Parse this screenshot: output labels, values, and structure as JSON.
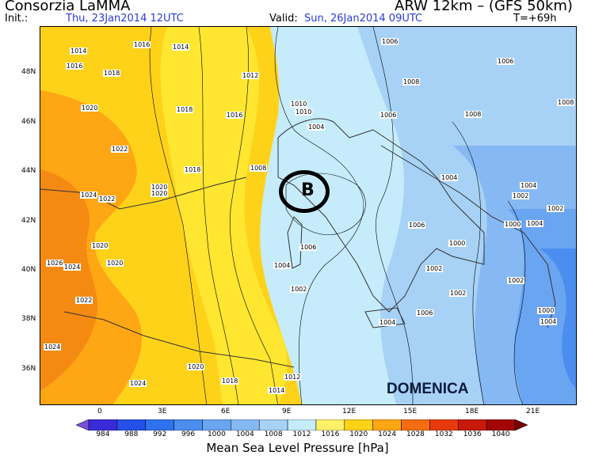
{
  "header": {
    "title": "Consorzia LaMMA",
    "model": "ARW 12km  –  (GFS 50km)",
    "init_label": "Init.:",
    "init_value": "Thu, 23Jan2014  12UTC",
    "valid_label": "Valid:",
    "valid_value": "Sun, 26Jan2014  09UTC",
    "lead": "T=+69h"
  },
  "map": {
    "lat_labels": [
      "48N",
      "46N",
      "44N",
      "42N",
      "40N",
      "38N",
      "36N"
    ],
    "lon_labels": [
      "0",
      "3E",
      "6E",
      "9E",
      "12E",
      "15E",
      "18E",
      "21E"
    ],
    "isobar_labels": [
      "1014",
      "1016",
      "1016",
      "1014",
      "1018",
      "1020",
      "1018",
      "1016",
      "1022",
      "1018",
      "1020",
      "1020",
      "1024",
      "1022",
      "1020",
      "1020",
      "1026",
      "1024",
      "1022",
      "1024",
      "1024",
      "1020",
      "1018",
      "1014",
      "1012",
      "1012",
      "1010",
      "1010",
      "1008",
      "1006",
      "1004",
      "1008",
      "1006",
      "1006",
      "1008",
      "1008",
      "1006",
      "1006",
      "1004",
      "1002",
      "1004",
      "1006",
      "1004",
      "1004",
      "1002",
      "1002",
      "1002",
      "1002",
      "1000",
      "1000",
      "1002",
      "1000",
      "1004",
      "1004"
    ],
    "low_marker": "B",
    "day_label": "DOMENICA"
  },
  "colorbar": {
    "title": "Mean Sea Level Pressure [hPa]",
    "labels": [
      "984",
      "988",
      "992",
      "996",
      "1000",
      "1004",
      "1008",
      "1012",
      "1016",
      "1020",
      "1024",
      "1028",
      "1032",
      "1036",
      "1040"
    ],
    "colors": [
      "#3a2bd8",
      "#2450e8",
      "#2f72ee",
      "#4b8ef0",
      "#6aa5f2",
      "#86b9f4",
      "#a7d2f6",
      "#c6ecfb",
      "#fff06a",
      "#ffd21a",
      "#ffa614",
      "#f56d10",
      "#e63a0c",
      "#c8190a",
      "#a30505"
    ]
  }
}
